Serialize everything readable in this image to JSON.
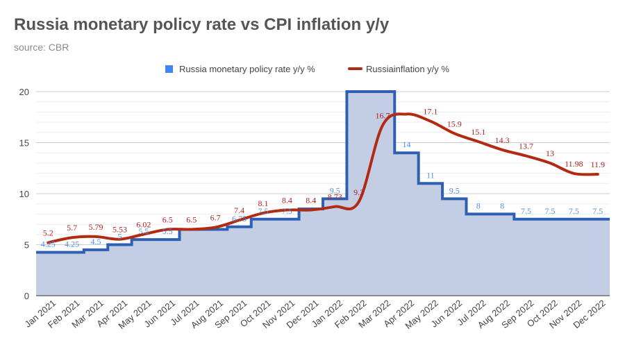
{
  "chart_data": {
    "type": "line",
    "title": "Russia monetary policy rate vs CPI inflation y/y",
    "subtitle": "source: CBR",
    "categories": [
      "Jan 2021",
      "Feb 2021",
      "Mar 2021",
      "Apr 2021",
      "May 2021",
      "Jun 2021",
      "Jul 2021",
      "Aug 2021",
      "Sep 2021",
      "Oct 2021",
      "Nov 2021",
      "Dec 2021",
      "Jan 2022",
      "Feb 2022",
      "Mar 2022",
      "Apr 2022",
      "May 2022",
      "Jun 2022",
      "Jul 2022",
      "Aug 2022",
      "Sep 2022",
      "Oct 2022",
      "Nov 2022",
      "Dec 2022"
    ],
    "ylim": [
      0,
      20
    ],
    "yticks": [
      0,
      5,
      10,
      15,
      20
    ],
    "grid": true,
    "legend_position": "top",
    "series": [
      {
        "name": "Russia monetary policy rate y/y %",
        "style": "stepped-area",
        "color": "#2f5fb3",
        "fill": "#c3cee5",
        "values": [
          4.25,
          4.25,
          4.5,
          5,
          5.5,
          5.5,
          6.5,
          6.5,
          6.75,
          7.5,
          7.5,
          8.5,
          9.5,
          20,
          20,
          14,
          11,
          9.5,
          8,
          8,
          7.5,
          7.5,
          7.5,
          7.5
        ],
        "labels": [
          "4.25",
          "4.25",
          "4.5",
          "5",
          "5.5",
          "5.5",
          "",
          "",
          "6.75",
          "7.5",
          "7.5",
          "",
          "9.5",
          "",
          "",
          "14",
          "11",
          "9.5",
          "8",
          "8",
          "7.5",
          "7.5",
          "7.5",
          "7.5"
        ]
      },
      {
        "name": "Russiainflation y/y %",
        "style": "line",
        "color": "#b22a12",
        "values": [
          5.2,
          5.7,
          5.79,
          5.53,
          6.02,
          6.5,
          6.5,
          6.7,
          7.4,
          8.1,
          8.4,
          8.4,
          8.73,
          9.2,
          16.7,
          17.8,
          17.1,
          15.9,
          15.1,
          14.3,
          13.7,
          13,
          11.98,
          11.9
        ],
        "labels": [
          "5.2",
          "5.7",
          "5.79",
          "5.53",
          "6.02",
          "6.5",
          "6.5",
          "6.7",
          "7.4",
          "8.1",
          "8.4",
          "8.4",
          "8.73",
          "9.2",
          "16.7",
          "",
          "17.1",
          "15.9",
          "15.1",
          "14.3",
          "13.7",
          "13",
          "11.98",
          "11.9"
        ]
      }
    ]
  }
}
